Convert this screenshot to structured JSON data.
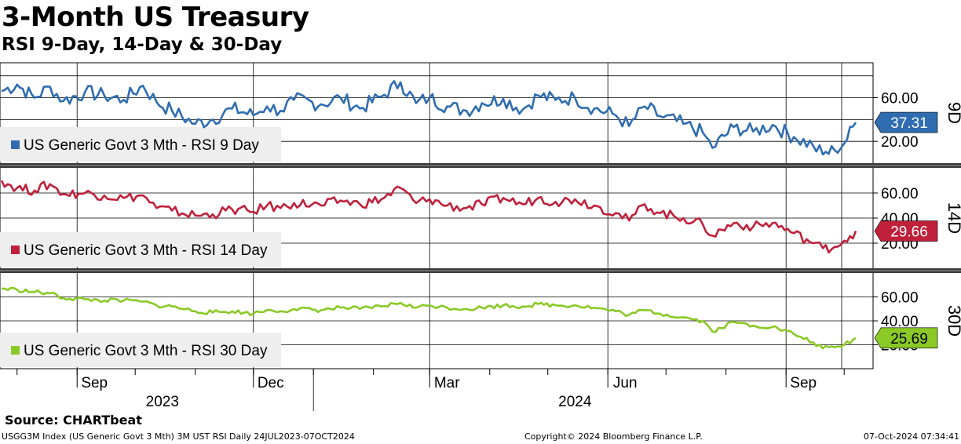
{
  "header": {
    "title": "3-Month US Treasury",
    "subtitle": "RSI 9-Day, 14-Day & 30-Day"
  },
  "footer": {
    "source": "Source: CHARTbeat",
    "index_info": "USGG3M Index (US Generic Govt 3 Mth) 3M UST RSI  Daily 24JUL2023-07OCT2024",
    "copyright": "Copyright© 2024 Bloomberg Finance L.P.",
    "timestamp": "07-Oct-2024 07:34:41"
  },
  "chart_data": {
    "type": "line",
    "date_range": [
      "2023-07-24",
      "2024-10-07"
    ],
    "x_month_labels": [
      {
        "label": "Sep",
        "date": "2023-09-01"
      },
      {
        "label": "Dec",
        "date": "2023-12-01"
      },
      {
        "label": "Mar",
        "date": "2024-03-01"
      },
      {
        "label": "Jun",
        "date": "2024-06-01"
      },
      {
        "label": "Sep",
        "date": "2024-09-01"
      }
    ],
    "x_year_labels": [
      {
        "label": "2023",
        "date": "2023-10-15"
      },
      {
        "label": "2024",
        "date": "2024-05-15"
      }
    ],
    "year_boundary": "2024-01-01",
    "grid": true,
    "legend_position": "left",
    "panels": [
      {
        "side_label": "9D",
        "legend": "US Generic Govt 3 Mth - RSI 9 Day",
        "color": "#2f6db0",
        "y_ticks": [
          "60.00",
          "20.00"
        ],
        "grid_values": [
          80,
          60,
          40,
          20
        ],
        "ylim": [
          0,
          92
        ],
        "last_label": "37.31",
        "last_value": 37.31,
        "series": [
          [
            "2023-07-24",
            66
          ],
          [
            "2023-08-01",
            72
          ],
          [
            "2023-08-10",
            60
          ],
          [
            "2023-08-18",
            70
          ],
          [
            "2023-08-25",
            57
          ],
          [
            "2023-09-05",
            65
          ],
          [
            "2023-09-15",
            62
          ],
          [
            "2023-09-25",
            58
          ],
          [
            "2023-10-05",
            71
          ],
          [
            "2023-10-12",
            56
          ],
          [
            "2023-10-20",
            48
          ],
          [
            "2023-11-01",
            36
          ],
          [
            "2023-11-10",
            40
          ],
          [
            "2023-11-20",
            50
          ],
          [
            "2023-12-01",
            44
          ],
          [
            "2023-12-08",
            52
          ],
          [
            "2023-12-15",
            48
          ],
          [
            "2023-12-22",
            58
          ],
          [
            "2024-01-05",
            54
          ],
          [
            "2024-01-15",
            60
          ],
          [
            "2024-01-25",
            50
          ],
          [
            "2024-02-05",
            61
          ],
          [
            "2024-02-15",
            74
          ],
          [
            "2024-02-23",
            55
          ],
          [
            "2024-03-01",
            60
          ],
          [
            "2024-03-10",
            52
          ],
          [
            "2024-03-20",
            48
          ],
          [
            "2024-03-28",
            55
          ],
          [
            "2024-04-08",
            59
          ],
          [
            "2024-04-18",
            49
          ],
          [
            "2024-04-26",
            62
          ],
          [
            "2024-05-05",
            58
          ],
          [
            "2024-05-15",
            60
          ],
          [
            "2024-05-25",
            50
          ],
          [
            "2024-06-05",
            44
          ],
          [
            "2024-06-12",
            34
          ],
          [
            "2024-06-20",
            52
          ],
          [
            "2024-06-28",
            43
          ],
          [
            "2024-07-10",
            36
          ],
          [
            "2024-07-20",
            28
          ],
          [
            "2024-07-25",
            14
          ],
          [
            "2024-08-05",
            33
          ],
          [
            "2024-08-15",
            29
          ],
          [
            "2024-08-25",
            35
          ],
          [
            "2024-09-05",
            24
          ],
          [
            "2024-09-15",
            16
          ],
          [
            "2024-09-20",
            8
          ],
          [
            "2024-09-26",
            12
          ],
          [
            "2024-10-01",
            18
          ],
          [
            "2024-10-07",
            37.31
          ]
        ]
      },
      {
        "side_label": "14D",
        "legend": "US Generic Govt 3 Mth - RSI 14 Day",
        "color": "#c0203a",
        "y_ticks": [
          "60.00",
          "40.00",
          "20.00"
        ],
        "grid_values": [
          80,
          60,
          40,
          20
        ],
        "ylim": [
          0,
          80
        ],
        "last_label": "29.66",
        "last_value": 29.66,
        "series": [
          [
            "2023-07-24",
            70
          ],
          [
            "2023-08-01",
            64
          ],
          [
            "2023-08-10",
            62
          ],
          [
            "2023-08-18",
            67
          ],
          [
            "2023-08-25",
            59
          ],
          [
            "2023-09-05",
            60
          ],
          [
            "2023-09-15",
            58
          ],
          [
            "2023-09-25",
            56
          ],
          [
            "2023-10-05",
            58
          ],
          [
            "2023-10-12",
            48
          ],
          [
            "2023-10-20",
            46
          ],
          [
            "2023-11-01",
            42
          ],
          [
            "2023-11-10",
            43
          ],
          [
            "2023-11-20",
            47
          ],
          [
            "2023-12-01",
            45
          ],
          [
            "2023-12-08",
            50
          ],
          [
            "2023-12-15",
            48
          ],
          [
            "2023-12-22",
            52
          ],
          [
            "2024-01-05",
            50
          ],
          [
            "2024-01-15",
            54
          ],
          [
            "2024-01-25",
            51
          ],
          [
            "2024-02-05",
            55
          ],
          [
            "2024-02-15",
            64
          ],
          [
            "2024-02-23",
            52
          ],
          [
            "2024-03-01",
            55
          ],
          [
            "2024-03-10",
            50
          ],
          [
            "2024-03-20",
            48
          ],
          [
            "2024-03-28",
            51
          ],
          [
            "2024-04-08",
            56
          ],
          [
            "2024-04-18",
            51
          ],
          [
            "2024-04-26",
            56
          ],
          [
            "2024-05-05",
            53
          ],
          [
            "2024-05-15",
            55
          ],
          [
            "2024-05-25",
            50
          ],
          [
            "2024-06-05",
            44
          ],
          [
            "2024-06-12",
            38
          ],
          [
            "2024-06-20",
            51
          ],
          [
            "2024-06-28",
            44
          ],
          [
            "2024-07-10",
            40
          ],
          [
            "2024-07-20",
            35
          ],
          [
            "2024-07-25",
            26
          ],
          [
            "2024-08-05",
            36
          ],
          [
            "2024-08-15",
            33
          ],
          [
            "2024-08-25",
            36
          ],
          [
            "2024-09-05",
            28
          ],
          [
            "2024-09-15",
            20
          ],
          [
            "2024-09-20",
            16
          ],
          [
            "2024-09-26",
            17
          ],
          [
            "2024-10-01",
            22
          ],
          [
            "2024-10-07",
            29.66
          ]
        ]
      },
      {
        "side_label": "30D",
        "legend": "US Generic Govt 3 Mth - RSI 30 Day",
        "color": "#8ac926",
        "y_ticks": [
          "60.00",
          "40.00",
          "20.00"
        ],
        "grid_values": [
          80,
          60,
          40,
          20
        ],
        "ylim": [
          0,
          80
        ],
        "last_label": "25.69",
        "last_value": 25.69,
        "series": [
          [
            "2023-07-24",
            67
          ],
          [
            "2023-08-01",
            66
          ],
          [
            "2023-08-10",
            64
          ],
          [
            "2023-08-18",
            63
          ],
          [
            "2023-08-25",
            59
          ],
          [
            "2023-09-05",
            58
          ],
          [
            "2023-09-15",
            57
          ],
          [
            "2023-09-25",
            57
          ],
          [
            "2023-10-05",
            56
          ],
          [
            "2023-10-12",
            53
          ],
          [
            "2023-10-20",
            52
          ],
          [
            "2023-11-01",
            48
          ],
          [
            "2023-11-10",
            47
          ],
          [
            "2023-11-20",
            48
          ],
          [
            "2023-12-01",
            46
          ],
          [
            "2023-12-08",
            49
          ],
          [
            "2023-12-15",
            48
          ],
          [
            "2023-12-22",
            50
          ],
          [
            "2024-01-05",
            49
          ],
          [
            "2024-01-15",
            51
          ],
          [
            "2024-01-25",
            50
          ],
          [
            "2024-02-05",
            52
          ],
          [
            "2024-02-15",
            55
          ],
          [
            "2024-02-23",
            51
          ],
          [
            "2024-03-01",
            53
          ],
          [
            "2024-03-10",
            51
          ],
          [
            "2024-03-20",
            50
          ],
          [
            "2024-03-28",
            51
          ],
          [
            "2024-04-08",
            53
          ],
          [
            "2024-04-18",
            52
          ],
          [
            "2024-04-26",
            54
          ],
          [
            "2024-05-05",
            53
          ],
          [
            "2024-05-15",
            53
          ],
          [
            "2024-05-25",
            51
          ],
          [
            "2024-06-05",
            48
          ],
          [
            "2024-06-12",
            45
          ],
          [
            "2024-06-20",
            49
          ],
          [
            "2024-06-28",
            46
          ],
          [
            "2024-07-10",
            43
          ],
          [
            "2024-07-20",
            40
          ],
          [
            "2024-07-25",
            31
          ],
          [
            "2024-08-05",
            39
          ],
          [
            "2024-08-15",
            36
          ],
          [
            "2024-08-25",
            35
          ],
          [
            "2024-09-05",
            29
          ],
          [
            "2024-09-15",
            22
          ],
          [
            "2024-09-20",
            17
          ],
          [
            "2024-09-26",
            18
          ],
          [
            "2024-10-01",
            20
          ],
          [
            "2024-10-07",
            25.69
          ]
        ]
      }
    ]
  }
}
